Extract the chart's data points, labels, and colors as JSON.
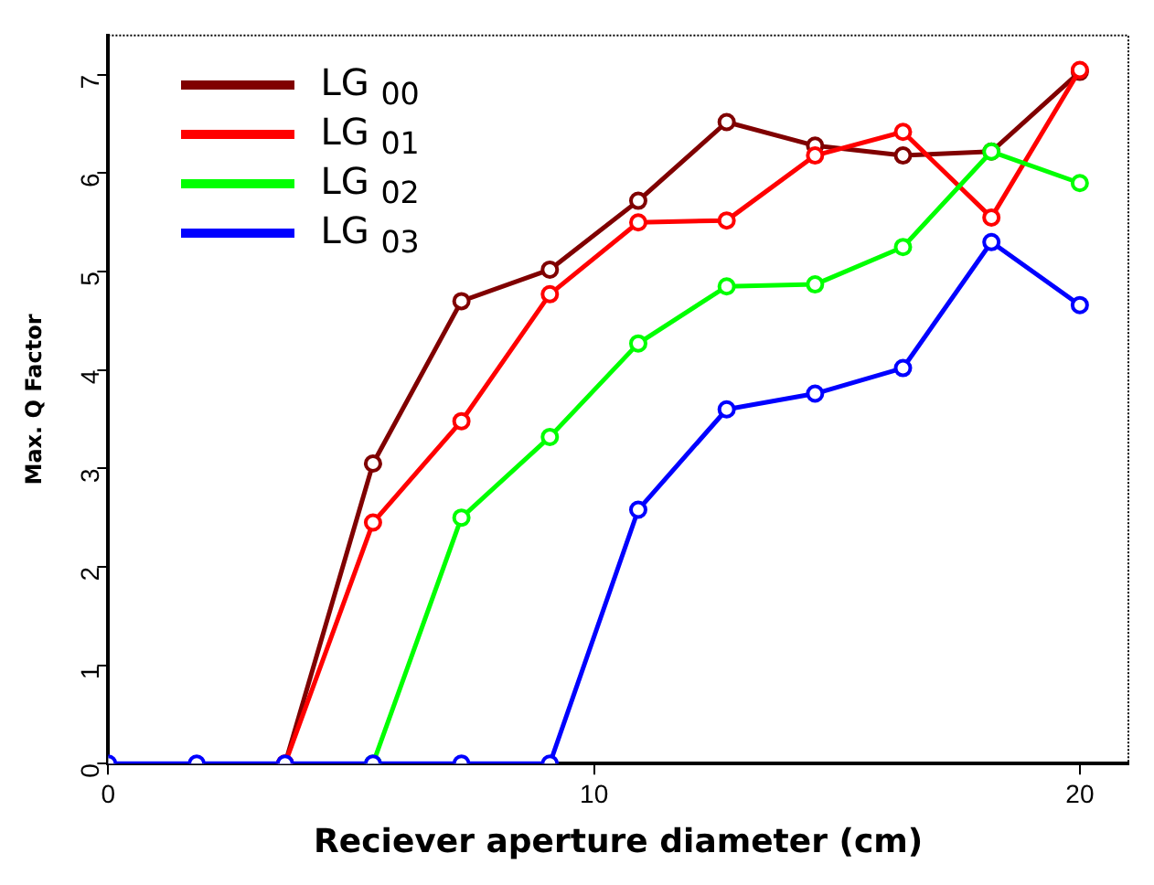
{
  "chart_data": {
    "type": "line",
    "xlabel": "Reciever aperture diameter (cm)",
    "ylabel": "Max. Q Factor",
    "x": [
      0,
      1.82,
      3.64,
      5.45,
      7.27,
      9.09,
      10.91,
      12.73,
      14.55,
      16.36,
      18.18,
      20
    ],
    "series": [
      {
        "name": "LG $_{00}$",
        "color": "#800000",
        "values": [
          null,
          null,
          0,
          3.05,
          4.7,
          5.02,
          5.72,
          6.52,
          6.28,
          6.18,
          6.22,
          7.03
        ]
      },
      {
        "name": "LG $_{01}$",
        "color": "#ff0000",
        "values": [
          null,
          null,
          0,
          2.45,
          3.48,
          4.77,
          5.5,
          5.52,
          6.18,
          6.42,
          5.55,
          7.05
        ]
      },
      {
        "name": "LG $_{02}$",
        "color": "#00ff00",
        "values": [
          null,
          null,
          null,
          0,
          2.5,
          3.32,
          4.27,
          4.85,
          4.87,
          5.25,
          6.22,
          5.9
        ]
      },
      {
        "name": "LG $_{03}$",
        "color": "#0000ff",
        "values": [
          0,
          0,
          0,
          0,
          0,
          0,
          2.58,
          3.6,
          3.76,
          4.02,
          5.3,
          4.66
        ]
      }
    ],
    "xlim": [
      0,
      21
    ],
    "xticks": [
      0,
      10,
      20
    ],
    "ylim": [
      0,
      7.4
    ],
    "yticks": [
      0,
      1,
      2,
      3,
      4,
      5,
      6,
      7
    ],
    "grid": false,
    "legend": "top left",
    "marker": "circle",
    "line_style": "solid"
  }
}
